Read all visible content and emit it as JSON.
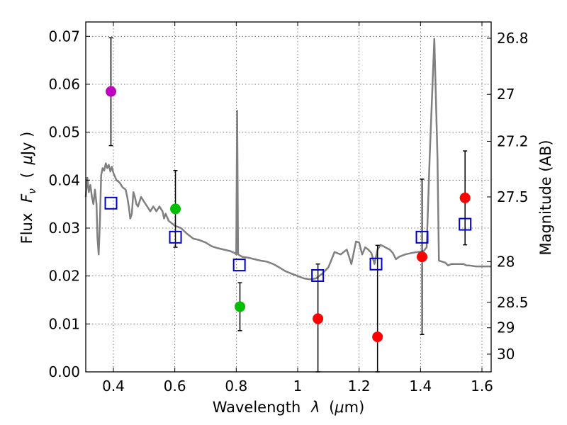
{
  "chart_data": {
    "type": "scatter",
    "xlabel": "Wavelength",
    "xlabel_symbol": "λ",
    "xlabel_unit_open": "(",
    "xlabel_unit_mu": "μ",
    "xlabel_unit_rest": "m)",
    "ylabel": "Flux",
    "ylabel_symbol": "F",
    "ylabel_subscript": "ν",
    "ylabel_unit_open": "(",
    "ylabel_unit_mu": "μ",
    "ylabel_unit_rest": "Jy )",
    "y2label": "Magnitude (AB)",
    "xlim": [
      0.31,
      1.63
    ],
    "ylim": [
      0.0,
      0.073
    ],
    "grid": true,
    "x_ticks": [
      {
        "value": 0.4,
        "label": "0.4"
      },
      {
        "value": 0.6,
        "label": "0.6"
      },
      {
        "value": 0.8,
        "label": "0.8"
      },
      {
        "value": 1.0,
        "label": "1"
      },
      {
        "value": 1.2,
        "label": "1.2"
      },
      {
        "value": 1.4,
        "label": "1.4"
      },
      {
        "value": 1.6,
        "label": "1.6"
      }
    ],
    "y_ticks": [
      {
        "value": 0.0,
        "label": "0.00"
      },
      {
        "value": 0.01,
        "label": "0.01"
      },
      {
        "value": 0.02,
        "label": "0.02"
      },
      {
        "value": 0.03,
        "label": "0.03"
      },
      {
        "value": 0.04,
        "label": "0.04"
      },
      {
        "value": 0.05,
        "label": "0.05"
      },
      {
        "value": 0.06,
        "label": "0.06"
      },
      {
        "value": 0.07,
        "label": "0.07"
      }
    ],
    "y2_ticks": [
      {
        "flux": 0.0696,
        "label": "26.8"
      },
      {
        "flux": 0.0579,
        "label": "27"
      },
      {
        "flux": 0.0481,
        "label": "27.2"
      },
      {
        "flux": 0.0365,
        "label": "27.5"
      },
      {
        "flux": 0.023,
        "label": "28"
      },
      {
        "flux": 0.0145,
        "label": "28.5"
      },
      {
        "flux": 0.0092,
        "label": "29"
      },
      {
        "flux": 0.0037,
        "label": "30"
      }
    ],
    "series": [
      {
        "name": "model-sed",
        "kind": "line",
        "color": "#808080",
        "points": [
          [
            0.31,
            0.0365
          ],
          [
            0.315,
            0.0405
          ],
          [
            0.32,
            0.0375
          ],
          [
            0.325,
            0.039
          ],
          [
            0.33,
            0.0365
          ],
          [
            0.335,
            0.035
          ],
          [
            0.34,
            0.038
          ],
          [
            0.345,
            0.035
          ],
          [
            0.348,
            0.028
          ],
          [
            0.352,
            0.0245
          ],
          [
            0.356,
            0.031
          ],
          [
            0.36,
            0.041
          ],
          [
            0.365,
            0.0425
          ],
          [
            0.37,
            0.042
          ],
          [
            0.375,
            0.0435
          ],
          [
            0.38,
            0.0425
          ],
          [
            0.385,
            0.0432
          ],
          [
            0.39,
            0.0418
          ],
          [
            0.395,
            0.0428
          ],
          [
            0.4,
            0.0415
          ],
          [
            0.41,
            0.04
          ],
          [
            0.42,
            0.0395
          ],
          [
            0.43,
            0.0385
          ],
          [
            0.44,
            0.038
          ],
          [
            0.445,
            0.0365
          ],
          [
            0.45,
            0.0345
          ],
          [
            0.455,
            0.032
          ],
          [
            0.46,
            0.033
          ],
          [
            0.465,
            0.0375
          ],
          [
            0.47,
            0.0365
          ],
          [
            0.475,
            0.035
          ],
          [
            0.48,
            0.0345
          ],
          [
            0.49,
            0.0365
          ],
          [
            0.5,
            0.0355
          ],
          [
            0.51,
            0.0345
          ],
          [
            0.52,
            0.0335
          ],
          [
            0.53,
            0.0345
          ],
          [
            0.54,
            0.0335
          ],
          [
            0.55,
            0.0345
          ],
          [
            0.56,
            0.0335
          ],
          [
            0.565,
            0.032
          ],
          [
            0.57,
            0.033
          ],
          [
            0.58,
            0.0315
          ],
          [
            0.6,
            0.0305
          ],
          [
            0.62,
            0.03
          ],
          [
            0.64,
            0.0288
          ],
          [
            0.66,
            0.0278
          ],
          [
            0.68,
            0.0275
          ],
          [
            0.7,
            0.027
          ],
          [
            0.72,
            0.0262
          ],
          [
            0.74,
            0.0258
          ],
          [
            0.76,
            0.0255
          ],
          [
            0.78,
            0.0252
          ],
          [
            0.795,
            0.0248
          ],
          [
            0.8,
            0.0245
          ],
          [
            0.803,
            0.0545
          ],
          [
            0.806,
            0.0245
          ],
          [
            0.82,
            0.024
          ],
          [
            0.84,
            0.0238
          ],
          [
            0.86,
            0.0235
          ],
          [
            0.88,
            0.0232
          ],
          [
            0.9,
            0.023
          ],
          [
            0.92,
            0.0225
          ],
          [
            0.94,
            0.0218
          ],
          [
            0.96,
            0.021
          ],
          [
            0.98,
            0.0205
          ],
          [
            1.0,
            0.02
          ],
          [
            1.02,
            0.0195
          ],
          [
            1.04,
            0.0193
          ],
          [
            1.06,
            0.0195
          ],
          [
            1.08,
            0.0205
          ],
          [
            1.1,
            0.0218
          ],
          [
            1.12,
            0.025
          ],
          [
            1.14,
            0.0245
          ],
          [
            1.16,
            0.0255
          ],
          [
            1.175,
            0.0225
          ],
          [
            1.19,
            0.0272
          ],
          [
            1.2,
            0.027
          ],
          [
            1.21,
            0.0245
          ],
          [
            1.22,
            0.026
          ],
          [
            1.23,
            0.0255
          ],
          [
            1.24,
            0.0248
          ],
          [
            1.25,
            0.0225
          ],
          [
            1.26,
            0.0255
          ],
          [
            1.27,
            0.0265
          ],
          [
            1.28,
            0.0262
          ],
          [
            1.29,
            0.0258
          ],
          [
            1.3,
            0.0255
          ],
          [
            1.31,
            0.0248
          ],
          [
            1.32,
            0.0235
          ],
          [
            1.33,
            0.024
          ],
          [
            1.35,
            0.0245
          ],
          [
            1.37,
            0.0248
          ],
          [
            1.39,
            0.025
          ],
          [
            1.41,
            0.0252
          ],
          [
            1.42,
            0.026
          ],
          [
            1.43,
            0.045
          ],
          [
            1.445,
            0.0695
          ],
          [
            1.455,
            0.045
          ],
          [
            1.46,
            0.0232
          ],
          [
            1.48,
            0.0228
          ],
          [
            1.49,
            0.0222
          ],
          [
            1.5,
            0.0225
          ],
          [
            1.52,
            0.0225
          ],
          [
            1.54,
            0.0225
          ],
          [
            1.55,
            0.0222
          ],
          [
            1.56,
            0.0222
          ],
          [
            1.58,
            0.022
          ],
          [
            1.6,
            0.022
          ],
          [
            1.63,
            0.022
          ]
        ]
      },
      {
        "name": "model-photometry",
        "kind": "open-square",
        "color": "#0000cc",
        "points": [
          [
            0.392,
            0.0352
          ],
          [
            0.602,
            0.0281
          ],
          [
            0.81,
            0.0223
          ],
          [
            1.065,
            0.0201
          ],
          [
            1.255,
            0.0225
          ],
          [
            1.405,
            0.0281
          ],
          [
            1.545,
            0.0308
          ]
        ]
      },
      {
        "name": "observed-flux",
        "kind": "filled-circle",
        "points": [
          {
            "x": 0.392,
            "y": 0.0585,
            "err_low": 0.0472,
            "err_high": 0.0697,
            "color": "#bf00bf"
          },
          {
            "x": 0.602,
            "y": 0.034,
            "err_low": 0.026,
            "err_high": 0.042,
            "color": "#00bf00"
          },
          {
            "x": 0.812,
            "y": 0.0136,
            "err_low": 0.0086,
            "err_high": 0.0186,
            "color": "#00bf00"
          },
          {
            "x": 1.066,
            "y": 0.0111,
            "err_low": 0.0,
            "err_high": 0.0225,
            "color": "#ff0000"
          },
          {
            "x": 1.26,
            "y": 0.0073,
            "err_low": 0.0,
            "err_high": 0.0264,
            "color": "#ff0000"
          },
          {
            "x": 1.405,
            "y": 0.024,
            "err_low": 0.0078,
            "err_high": 0.0402,
            "color": "#ff0000"
          },
          {
            "x": 1.545,
            "y": 0.0363,
            "err_low": 0.0265,
            "err_high": 0.0461,
            "color": "#ff0000"
          }
        ]
      }
    ]
  }
}
